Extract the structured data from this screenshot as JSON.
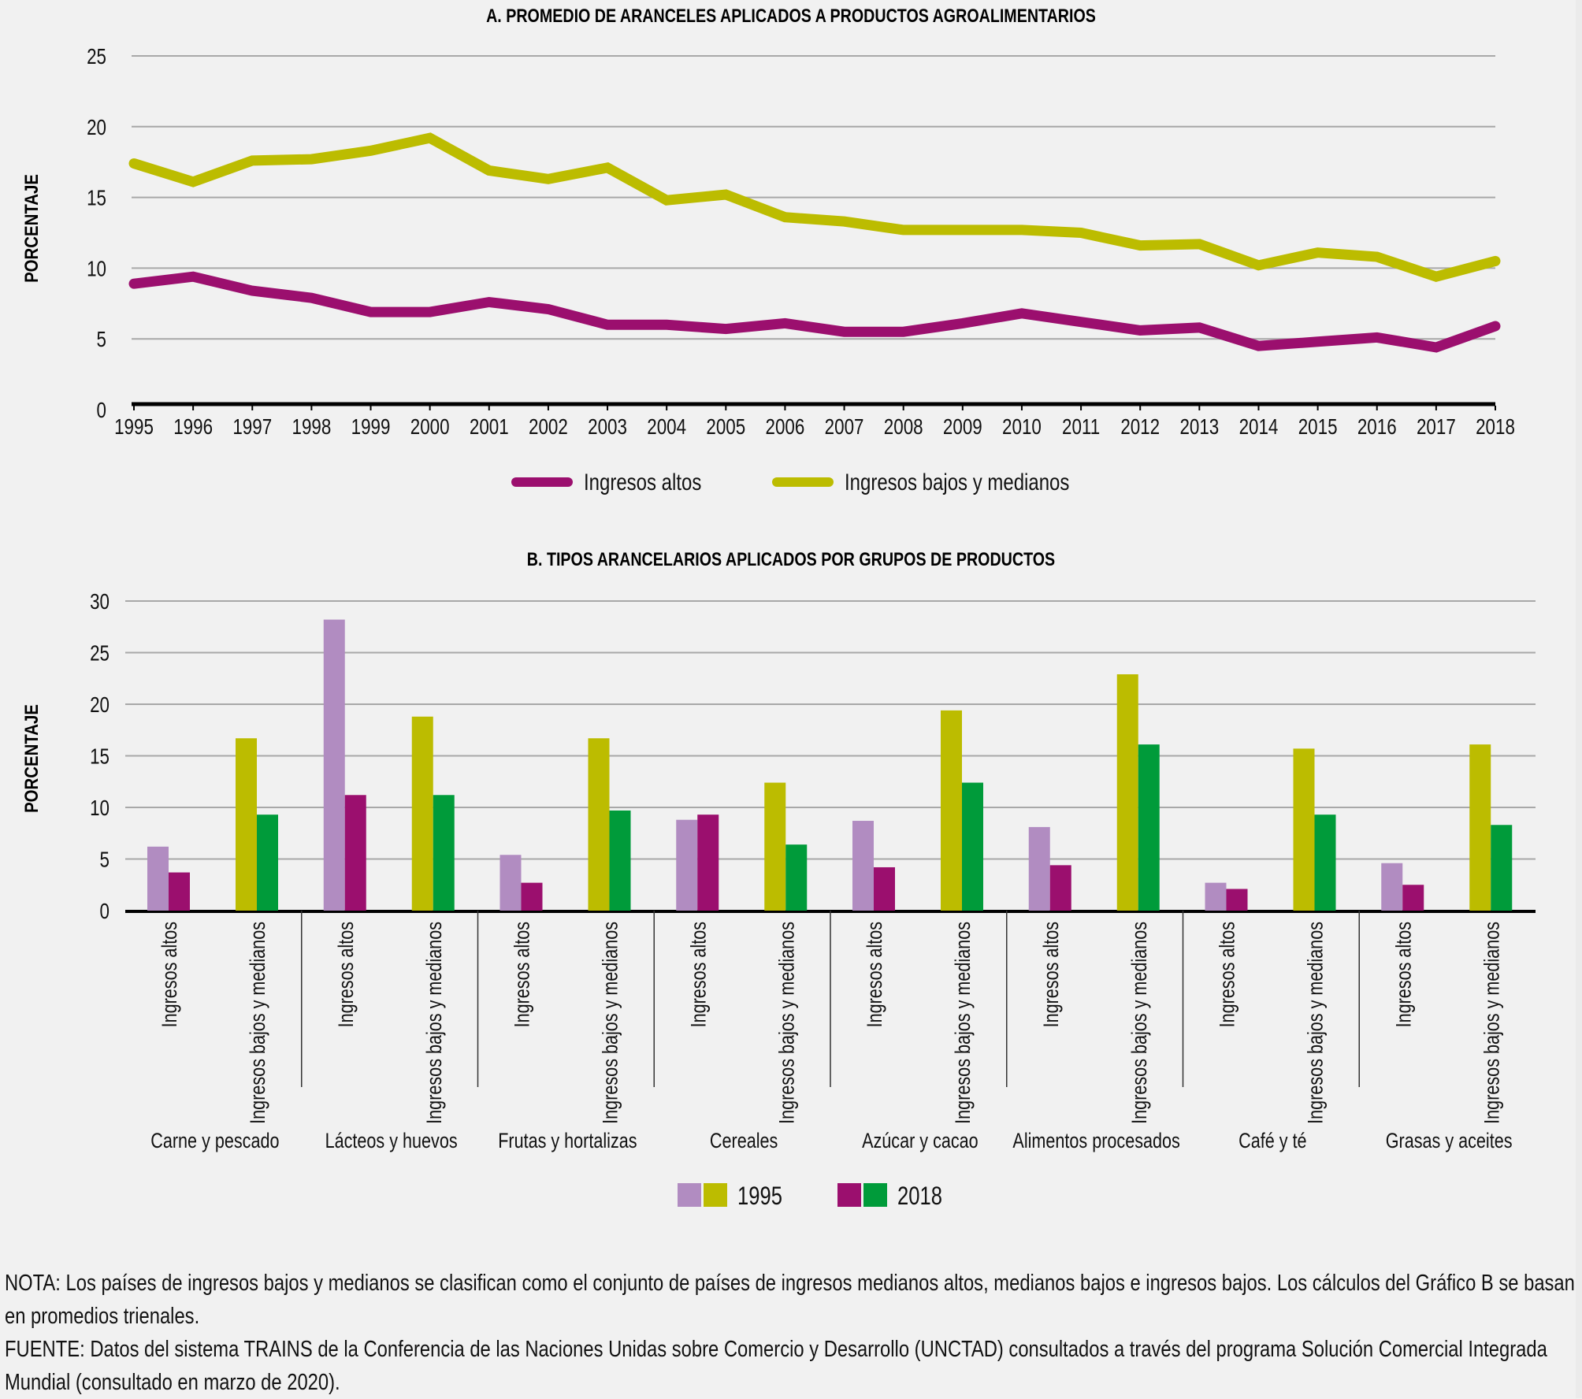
{
  "colors": {
    "background": "#f1f1f1",
    "high_income_line": "#9b0f6e",
    "low_middle_income_line": "#bcbc00",
    "high_income_1995": "#b18cc1",
    "high_income_2018": "#9b0f6e",
    "low_middle_1995": "#bcbc00",
    "low_middle_2018": "#009b3a",
    "gridline": "#a8a8a8",
    "axis": "#000000"
  },
  "chart_data": [
    {
      "type": "line",
      "title": "A. PROMEDIO DE ARANCELES APLICADOS A PRODUCTOS AGROALIMENTARIOS",
      "xlabel": "",
      "ylabel": "PORCENTAJE",
      "ylim": [
        0,
        25
      ],
      "yticks": [
        0,
        5,
        10,
        15,
        20,
        25
      ],
      "grid": true,
      "legend_position": "bottom-center",
      "x": [
        "1995",
        "1996",
        "1997",
        "1998",
        "1999",
        "2000",
        "2001",
        "2002",
        "2003",
        "2004",
        "2005",
        "2006",
        "2007",
        "2008",
        "2009",
        "2010",
        "2011",
        "2012",
        "2013",
        "2014",
        "2015",
        "2016",
        "2017",
        "2018"
      ],
      "series": [
        {
          "name": "Ingresos altos",
          "color": "#9b0f6e",
          "values": [
            8.9,
            9.4,
            8.4,
            7.9,
            6.9,
            6.9,
            7.6,
            7.1,
            6.0,
            6.0,
            5.7,
            6.1,
            5.5,
            5.5,
            6.1,
            6.8,
            6.2,
            5.6,
            5.8,
            4.5,
            4.8,
            5.1,
            4.4,
            5.9
          ]
        },
        {
          "name": "Ingresos bajos y medianos",
          "color": "#bcbc00",
          "values": [
            17.4,
            16.1,
            17.6,
            17.7,
            18.3,
            19.2,
            16.9,
            16.3,
            17.1,
            14.8,
            15.2,
            13.6,
            13.3,
            12.7,
            12.7,
            12.7,
            12.5,
            11.6,
            11.7,
            10.2,
            11.1,
            10.8,
            9.4,
            10.5
          ]
        }
      ]
    },
    {
      "type": "bar",
      "title": "B. TIPOS ARANCELARIOS APLICADOS POR GRUPOS DE PRODUCTOS",
      "xlabel": "",
      "ylabel": "PORCENTAJE",
      "ylim": [
        0,
        30
      ],
      "yticks": [
        0,
        5,
        10,
        15,
        20,
        25,
        30
      ],
      "grid": true,
      "legend_position": "bottom-center",
      "legend": [
        {
          "label": "1995",
          "colors": [
            "#b18cc1",
            "#bcbc00"
          ]
        },
        {
          "label": "2018",
          "colors": [
            "#9b0f6e",
            "#009b3a"
          ]
        }
      ],
      "subcategories": [
        "Ingresos altos",
        "Ingresos bajos y medianos"
      ],
      "categories": [
        "Carne y pescado",
        "Lácteos y huevos",
        "Frutas y hortalizas",
        "Cereales",
        "Azúcar y cacao",
        "Alimentos procesados",
        "Café y té",
        "Grasas y aceites"
      ],
      "series": [
        {
          "name": "Ingresos altos 1995",
          "subcategory": "Ingresos altos",
          "year": "1995",
          "color": "#b18cc1",
          "values": [
            6.2,
            28.2,
            5.4,
            8.8,
            8.7,
            8.1,
            2.7,
            4.6
          ]
        },
        {
          "name": "Ingresos altos 2018",
          "subcategory": "Ingresos altos",
          "year": "2018",
          "color": "#9b0f6e",
          "values": [
            3.7,
            11.2,
            2.7,
            9.3,
            4.2,
            4.4,
            2.1,
            2.5
          ]
        },
        {
          "name": "Ingresos bajos y medianos 1995",
          "subcategory": "Ingresos bajos y medianos",
          "year": "1995",
          "color": "#bcbc00",
          "values": [
            16.7,
            18.8,
            16.7,
            12.4,
            19.4,
            22.9,
            15.7,
            16.1
          ]
        },
        {
          "name": "Ingresos bajos y medianos 2018",
          "subcategory": "Ingresos bajos y medianos",
          "year": "2018",
          "color": "#009b3a",
          "values": [
            9.3,
            11.2,
            9.7,
            6.4,
            12.4,
            16.1,
            9.3,
            8.3
          ]
        }
      ]
    }
  ],
  "notes": {
    "nota": "NOTA: Los países de ingresos bajos y medianos se clasifican como el conjunto de países de ingresos medianos altos, medianos bajos e ingresos bajos. Los cálculos del Gráfico B se basan en promedios trienales.",
    "fuente": "FUENTE: Datos del sistema TRAINS de la Conferencia de las Naciones Unidas sobre Comercio y Desarrollo (UNCTAD) consultados a través del programa Solución Comercial Integrada Mundial (consultado en marzo de 2020)."
  }
}
